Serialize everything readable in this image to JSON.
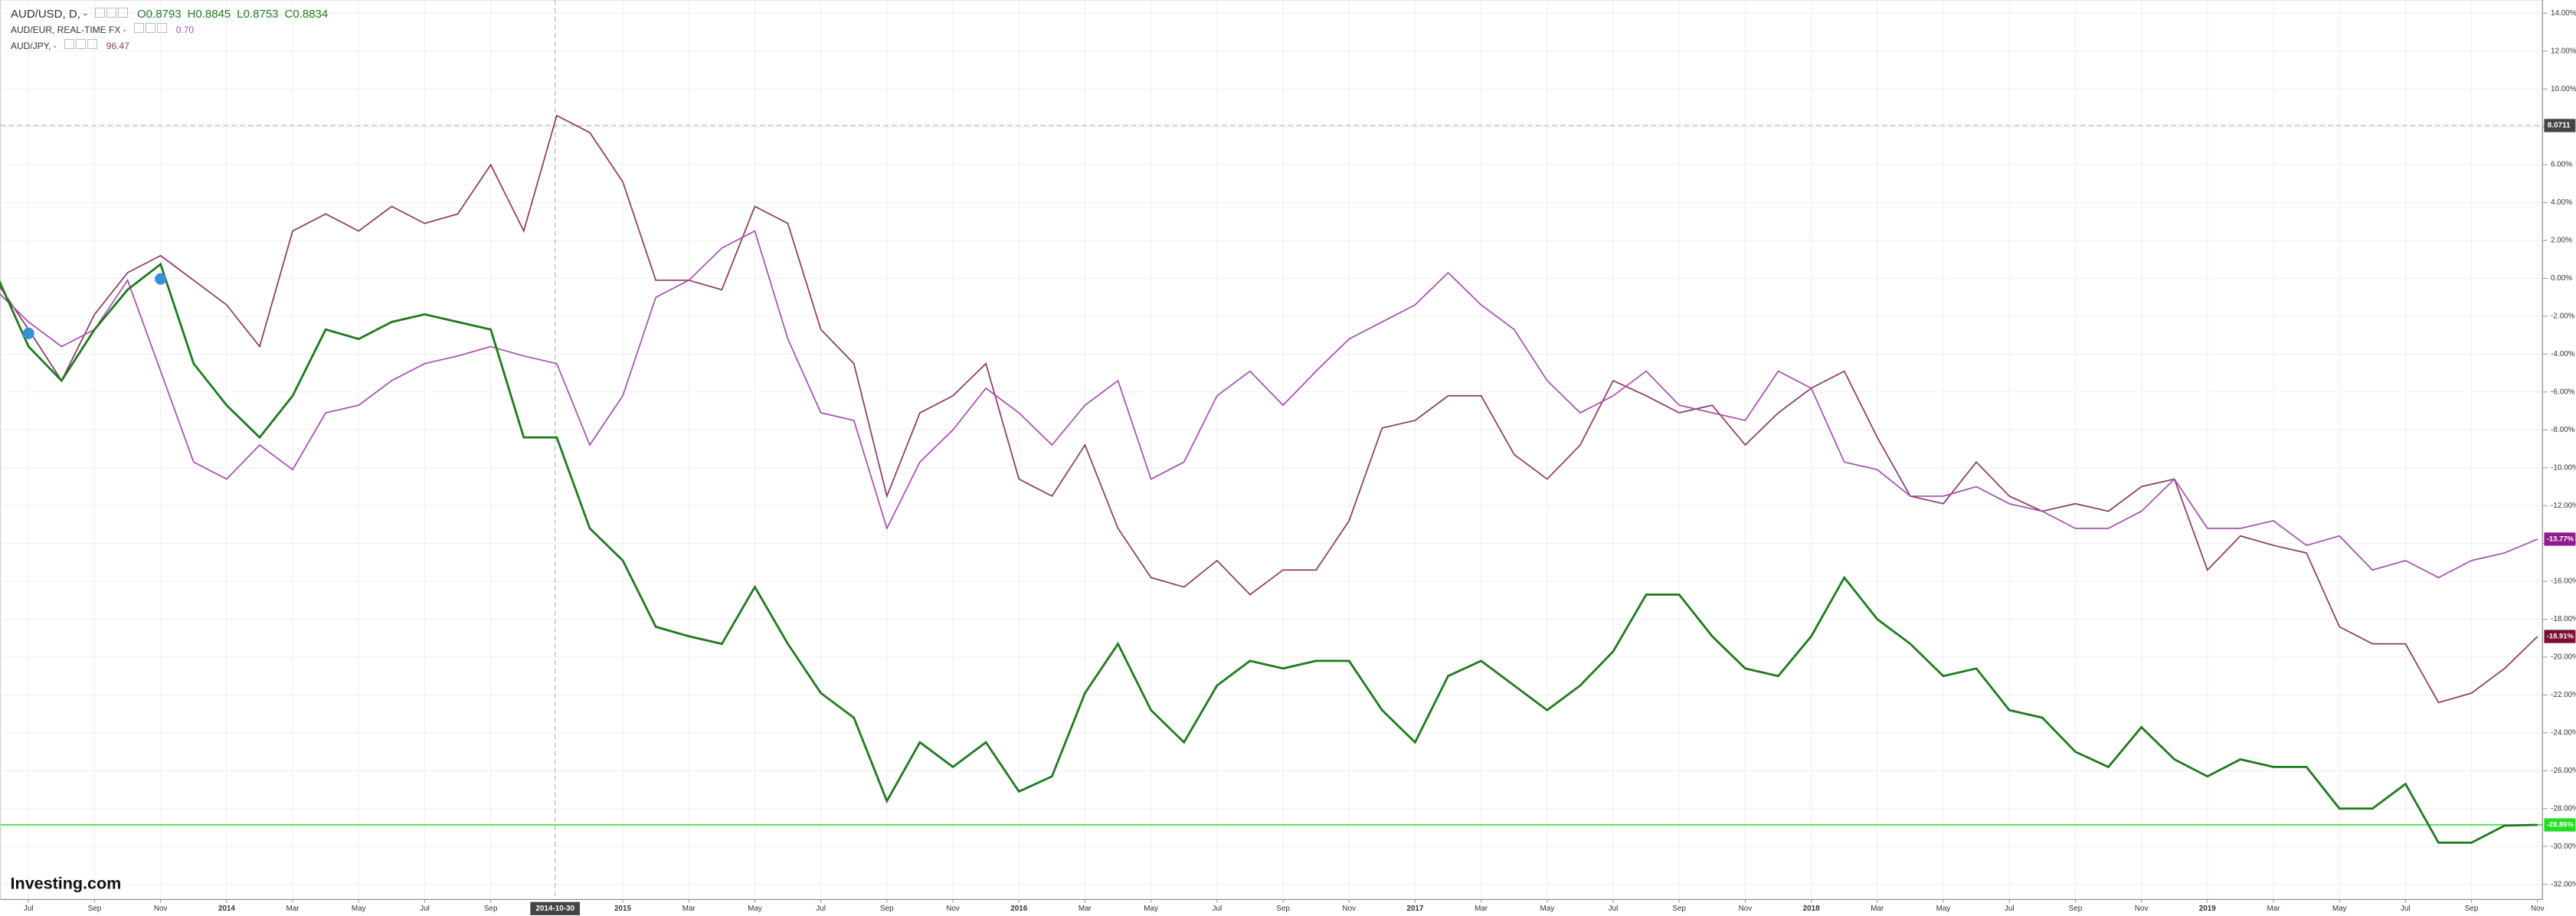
{
  "chart_data": {
    "type": "line",
    "header": {
      "ohlc": [
        "O0.8793",
        "H0.8845",
        "L0.8753",
        "C0.8834"
      ]
    },
    "watermark": "Investing.com",
    "x": [
      0,
      1,
      2,
      3,
      4,
      5,
      6,
      7,
      8,
      9,
      10,
      11,
      12,
      13,
      14,
      15,
      16,
      17,
      18,
      19,
      20,
      21,
      22,
      23,
      24,
      25,
      26,
      27,
      28,
      29,
      30,
      31,
      32,
      33,
      34,
      35,
      36,
      37,
      38,
      39,
      40,
      41,
      42,
      43,
      44,
      45,
      46,
      47,
      48,
      49,
      50,
      51,
      52,
      53,
      54,
      55,
      56,
      57,
      58,
      59,
      60,
      61,
      62,
      63,
      64,
      65,
      66,
      67,
      68,
      69,
      70,
      71,
      72,
      73,
      74,
      75,
      76,
      77
    ],
    "series": [
      {
        "name": "AUD/USD, D, -",
        "color": "#1e7a1e",
        "last_label_color": "#22dd22",
        "last_value_label": "-28.86%",
        "values": [
          0.3,
          -3.6,
          -5.4,
          -2.7,
          -0.6,
          0.75,
          -4.5,
          -6.7,
          -8.4,
          -6.2,
          -2.7,
          -3.2,
          -2.3,
          -1.9,
          -2.3,
          -2.7,
          -8.4,
          -8.4,
          -13.2,
          -14.9,
          -18.4,
          -18.9,
          -19.3,
          -16.3,
          -19.3,
          -21.9,
          -23.2,
          -27.6,
          -24.5,
          -25.8,
          -24.5,
          -27.1,
          -26.3,
          -21.9,
          -19.3,
          -22.8,
          -24.5,
          -21.5,
          -20.2,
          -20.6,
          -20.2,
          -20.2,
          -22.8,
          -24.5,
          -21.0,
          -20.2,
          -21.5,
          -22.8,
          -21.5,
          -19.7,
          -16.7,
          -16.7,
          -18.9,
          -20.6,
          -21.0,
          -18.9,
          -15.8,
          -18.0,
          -19.3,
          -21.0,
          -20.6,
          -22.8,
          -23.2,
          -25.0,
          -25.8,
          -23.7,
          -25.4,
          -26.3,
          -25.4,
          -25.8,
          -25.8,
          -28.0,
          -28.0,
          -26.7,
          -29.8,
          -29.8,
          -28.9,
          -28.86
        ]
      },
      {
        "name": "AUD/EUR, REAL-TIME FX -",
        "quote": "0.70",
        "color": "#a550b0",
        "last_label_color": "#8e1c8e",
        "last_value_label": "-13.77%",
        "values": [
          -0.6,
          -2.3,
          -3.6,
          -2.7,
          -0.1,
          -4.9,
          -9.7,
          -10.6,
          -8.8,
          -10.1,
          -7.1,
          -6.7,
          -5.4,
          -4.5,
          -4.1,
          -3.6,
          -4.1,
          -4.5,
          -8.8,
          -6.2,
          -1.0,
          -0.1,
          1.6,
          2.5,
          -3.2,
          -7.1,
          -7.5,
          -13.2,
          -9.7,
          -8.0,
          -5.8,
          -7.1,
          -8.8,
          -6.7,
          -5.4,
          -10.6,
          -9.7,
          -6.2,
          -4.9,
          -6.7,
          -4.9,
          -3.2,
          -2.3,
          -1.4,
          0.3,
          -1.4,
          -2.7,
          -5.4,
          -7.1,
          -6.2,
          -4.9,
          -6.7,
          -7.1,
          -7.5,
          -4.9,
          -5.8,
          -9.7,
          -10.1,
          -11.5,
          -11.5,
          -11.0,
          -11.9,
          -12.3,
          -13.2,
          -13.2,
          -12.3,
          -10.6,
          -13.2,
          -13.2,
          -12.8,
          -14.1,
          -13.6,
          -15.4,
          -14.9,
          -15.8,
          -14.9,
          -14.5,
          -13.77
        ]
      },
      {
        "name": "AUD/JPY, -",
        "quote": "96.47",
        "color": "#8b3a62",
        "last_label_color": "#7a1030",
        "last_value_label": "-18.91%",
        "values": [
          -0.1,
          -2.7,
          -5.4,
          -1.9,
          0.3,
          1.2,
          -0.1,
          -1.4,
          -3.6,
          2.5,
          3.4,
          2.5,
          3.8,
          2.9,
          3.4,
          6.0,
          2.5,
          8.6,
          7.7,
          5.1,
          -0.1,
          -0.1,
          -0.6,
          3.8,
          2.9,
          -2.7,
          -4.5,
          -11.5,
          -7.1,
          -6.2,
          -4.5,
          -10.6,
          -11.5,
          -8.8,
          -13.2,
          -15.8,
          -16.3,
          -14.9,
          -16.7,
          -15.4,
          -15.4,
          -12.8,
          -7.9,
          -7.5,
          -6.2,
          -6.2,
          -9.3,
          -10.6,
          -8.8,
          -5.4,
          -6.2,
          -7.1,
          -6.7,
          -8.8,
          -7.1,
          -5.8,
          -4.9,
          -8.4,
          -11.5,
          -11.9,
          -9.7,
          -11.5,
          -12.3,
          -11.9,
          -12.3,
          -11.0,
          -10.6,
          -15.4,
          -13.6,
          -14.1,
          -14.5,
          -18.4,
          -19.3,
          -19.3,
          -22.4,
          -21.9,
          -20.6,
          -18.91
        ]
      }
    ],
    "xlim": [
      0.15,
      77.15
    ],
    "xticks": [
      {
        "value": 1,
        "label": "Jul"
      },
      {
        "value": 3,
        "label": "Sep"
      },
      {
        "value": 5,
        "label": "Nov"
      },
      {
        "value": 7,
        "label": "2014"
      },
      {
        "value": 9,
        "label": "Mar"
      },
      {
        "value": 11,
        "label": "May"
      },
      {
        "value": 13,
        "label": "Jul"
      },
      {
        "value": 15,
        "label": "Sep"
      },
      {
        "value": 19,
        "label": "2015"
      },
      {
        "value": 21,
        "label": "Mar"
      },
      {
        "value": 23,
        "label": "May"
      },
      {
        "value": 25,
        "label": "Jul"
      },
      {
        "value": 27,
        "label": "Sep"
      },
      {
        "value": 29,
        "label": "Nov"
      },
      {
        "value": 31,
        "label": "2016"
      },
      {
        "value": 33,
        "label": "Mar"
      },
      {
        "value": 35,
        "label": "May"
      },
      {
        "value": 37,
        "label": "Jul"
      },
      {
        "value": 39,
        "label": "Sep"
      },
      {
        "value": 41,
        "label": "Nov"
      },
      {
        "value": 43,
        "label": "2017"
      },
      {
        "value": 45,
        "label": "Mar"
      },
      {
        "value": 47,
        "label": "May"
      },
      {
        "value": 49,
        "label": "Jul"
      },
      {
        "value": 51,
        "label": "Sep"
      },
      {
        "value": 53,
        "label": "Nov"
      },
      {
        "value": 55,
        "label": "2018"
      },
      {
        "value": 57,
        "label": "Mar"
      },
      {
        "value": 59,
        "label": "May"
      },
      {
        "value": 61,
        "label": "Jul"
      },
      {
        "value": 63,
        "label": "Sep"
      },
      {
        "value": 65,
        "label": "Nov"
      },
      {
        "value": 67,
        "label": "2019"
      },
      {
        "value": 69,
        "label": "Mar"
      },
      {
        "value": 71,
        "label": "May"
      },
      {
        "value": 73,
        "label": "Jul"
      },
      {
        "value": 75,
        "label": "Sep"
      },
      {
        "value": 77,
        "label": "Nov"
      }
    ],
    "ylim": [
      -32.8,
      14.7
    ],
    "yticks": [
      {
        "value": 14,
        "label": "14.00%"
      },
      {
        "value": 12,
        "label": "12.00%"
      },
      {
        "value": 10,
        "label": "10.00%"
      },
      {
        "value": 8,
        "label": "8.00%"
      },
      {
        "value": 6,
        "label": "6.00%"
      },
      {
        "value": 4,
        "label": "4.00%"
      },
      {
        "value": 2,
        "label": "2.00%"
      },
      {
        "value": 0,
        "label": "0.00%"
      },
      {
        "value": -2,
        "label": "-2.00%"
      },
      {
        "value": -4,
        "label": "-4.00%"
      },
      {
        "value": -6,
        "label": "-6.00%"
      },
      {
        "value": -8,
        "label": "-8.00%"
      },
      {
        "value": -10,
        "label": "-10.00%"
      },
      {
        "value": -12,
        "label": "-12.00%"
      },
      {
        "value": -14,
        "label": "-14.00%"
      },
      {
        "value": -16,
        "label": "-16.00%"
      },
      {
        "value": -18,
        "label": "-18.00%"
      },
      {
        "value": -20,
        "label": "-20.00%"
      },
      {
        "value": -22,
        "label": "-22.00%"
      },
      {
        "value": -24,
        "label": "-24.00%"
      },
      {
        "value": -26,
        "label": "-26.00%"
      },
      {
        "value": -28,
        "label": "-28.00%"
      },
      {
        "value": -30,
        "label": "-30.00%"
      },
      {
        "value": -32,
        "label": "-32.00%"
      }
    ],
    "grid": true,
    "crosshair": {
      "x": 16.95,
      "x_label": "2014-10-30",
      "y": 8.0711
    }
  }
}
